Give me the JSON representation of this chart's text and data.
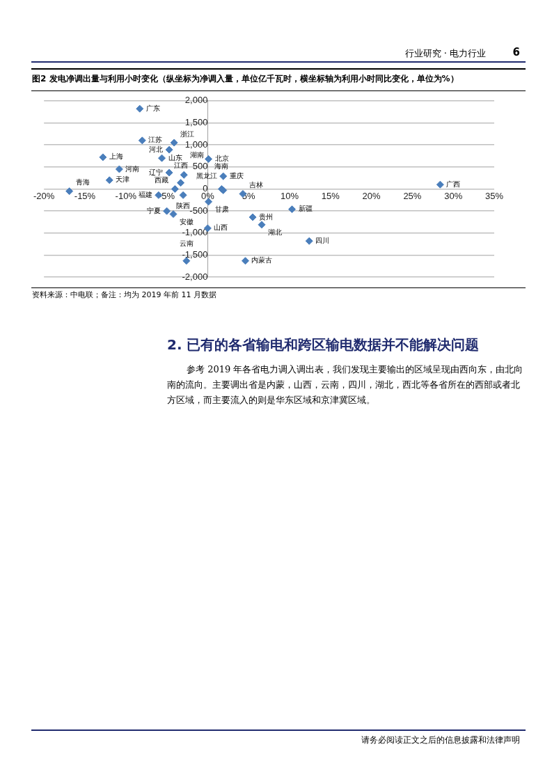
{
  "chart_data": {
    "type": "scatter",
    "title": "图2  发电净调出量与利用小时变化（纵坐标为净调入量，单位亿千瓦时，横坐标轴为利用小时同比变化，单位为%）",
    "x": [
      -8.3,
      -8.0,
      -4.1,
      -4.7,
      -12.8,
      -5.6,
      -10.8,
      -4.7,
      -2.9,
      -12.0,
      -3.3,
      -4.0,
      -6.0,
      -16.9,
      -3.0,
      -5.0,
      -4.2,
      -2.6,
      0.1,
      0.0,
      0.1,
      1.9,
      1.7,
      1.9,
      4.3,
      5.5,
      6.6,
      10.3,
      12.4,
      4.6,
      28.4
    ],
    "values": [
      1820,
      1100,
      1050,
      890,
      720,
      700,
      450,
      370,
      320,
      200,
      140,
      0,
      -140,
      -50,
      -140,
      -500,
      -570,
      -1630,
      -290,
      -890,
      680,
      290,
      0,
      -30,
      -110,
      -640,
      -810,
      -460,
      -1180,
      -1630,
      100
    ],
    "color": "#4a7ebb",
    "marker": "diamond",
    "grid": "y",
    "legend": false,
    "xlim": [
      -20,
      35
    ],
    "ylim": [
      -2000,
      2000
    ],
    "xticks": [
      {
        "value": -20,
        "label": "-20%"
      },
      {
        "value": -15,
        "label": "-15%"
      },
      {
        "value": -10,
        "label": "-10%"
      },
      {
        "value": -5,
        "label": "-5%"
      },
      {
        "value": 0,
        "label": "0%"
      },
      {
        "value": 5,
        "label": "5%"
      },
      {
        "value": 10,
        "label": "10%"
      },
      {
        "value": 15,
        "label": "15%"
      },
      {
        "value": 20,
        "label": "20%"
      },
      {
        "value": 25,
        "label": "25%"
      },
      {
        "value": 30,
        "label": "30%"
      },
      {
        "value": 35,
        "label": "35%"
      }
    ],
    "yticks": [
      {
        "value": -2000,
        "label": "-2,000"
      },
      {
        "value": -1500,
        "label": "-1,500"
      },
      {
        "value": -1000,
        "label": "-1,000"
      },
      {
        "value": -500,
        "label": "-500"
      },
      0,
      {
        "value": 500,
        "label": "500"
      },
      {
        "value": 1000,
        "label": "1,000"
      },
      {
        "value": 1500,
        "label": "1,500"
      },
      {
        "value": 2000,
        "label": "2,000"
      }
    ],
    "annotations": [
      {
        "text": "广东",
        "x": -8.3,
        "y": 1820
      },
      {
        "text": "江苏",
        "x": -8.0,
        "y": 1100
      },
      {
        "text": "浙江",
        "x": -4.1,
        "y": 1050
      },
      {
        "text": "河北",
        "x": -4.7,
        "y": 890
      },
      {
        "text": "上海",
        "x": -12.8,
        "y": 720
      },
      {
        "text": "山东",
        "x": -5.6,
        "y": 700
      },
      {
        "text": "河南",
        "x": -10.8,
        "y": 450
      },
      {
        "text": "辽宁",
        "x": -4.7,
        "y": 370
      },
      {
        "text": "湖南",
        "x": -2.9,
        "y": 320
      },
      {
        "text": "天津",
        "x": -12.0,
        "y": 200
      },
      {
        "text": "江西",
        "x": -3.3,
        "y": 140
      },
      {
        "text": "西藏",
        "x": -4.0,
        "y": 0
      },
      {
        "text": "福建",
        "x": -6.0,
        "y": -140
      },
      {
        "text": "青海",
        "x": -16.9,
        "y": -50
      },
      {
        "text": "陕西",
        "x": -3.0,
        "y": -140
      },
      {
        "text": "宁夏",
        "x": -5.0,
        "y": -500
      },
      {
        "text": "安徽",
        "x": -4.2,
        "y": -570
      },
      {
        "text": "云南",
        "x": -2.6,
        "y": -1630
      },
      {
        "text": "甘肃",
        "x": 0.1,
        "y": -290
      },
      {
        "text": "山西",
        "x": 0.0,
        "y": -890
      },
      {
        "text": "北京",
        "x": 0.1,
        "y": 680
      },
      {
        "text": "重庆",
        "x": 1.9,
        "y": 290
      },
      {
        "text": "海南",
        "x": 1.7,
        "y": 0
      },
      {
        "text": "黑龙江",
        "x": 1.9,
        "y": -30
      },
      {
        "text": "吉林",
        "x": 4.3,
        "y": -110
      },
      {
        "text": "贵州",
        "x": 5.5,
        "y": -640
      },
      {
        "text": "湖北",
        "x": 6.6,
        "y": -810
      },
      {
        "text": "新疆",
        "x": 10.3,
        "y": -460
      },
      {
        "text": "四川",
        "x": 12.4,
        "y": -1180
      },
      {
        "text": "内蒙古",
        "x": 4.6,
        "y": -1630
      },
      {
        "text": "广西",
        "x": 28.4,
        "y": 100
      },
      "行业研究 · 电力行业",
      "6",
      "资料来源：中电联；备注：均为 2019 年前 11 月数据",
      "2.  已有的各省输电和跨区输电数据并不能解决问题",
      "参考 2019 年各省电力调入调出表，我们发现主要输出的区域呈现由西向东，由北向南的流向。主要调出省是内蒙，山西，云南，四川，湖北，西北等各省所在的西部或者北方区域，而主要流入的则是华东区域和京津冀区域。",
      "请务必阅读正文之后的信息披露和法律声明"
    ]
  }
}
